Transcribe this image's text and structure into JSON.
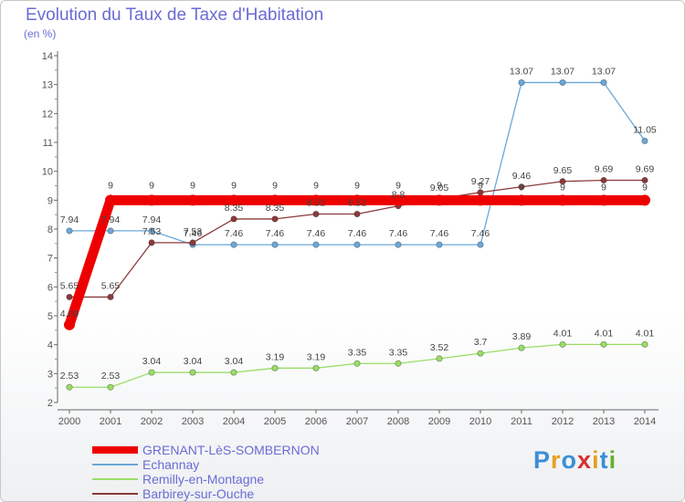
{
  "title": "Evolution du Taux de Taxe d'Habitation",
  "subtitle": "(en %)",
  "brand": {
    "text": "Proxiti",
    "colors": [
      "#3a8fd6",
      "#e8a020",
      "#3a8fd6",
      "#d63030",
      "#e8a020",
      "#3a8fd6",
      "#66b030"
    ]
  },
  "chart_data": {
    "type": "line",
    "title": "Evolution du Taux de Taxe d'Habitation",
    "subtitle": "(en %)",
    "xlabel": "",
    "ylabel": "(en %)",
    "x": [
      "2000",
      "2001",
      "2002",
      "2003",
      "2004",
      "2005",
      "2006",
      "2007",
      "2008",
      "2009",
      "2010",
      "2011",
      "2012",
      "2013",
      "2014"
    ],
    "ylim": [
      2,
      14
    ],
    "yticks": [
      "2",
      "3",
      "4",
      "5",
      "6",
      "7",
      "8",
      "9",
      "10",
      "11",
      "12",
      "13",
      "14"
    ],
    "legend_position": "bottom-left",
    "series": [
      {
        "name": "GRENANT-LèS-SOMBERNON",
        "color": "#ee0000",
        "values": [
          4.69,
          9,
          9,
          9,
          9,
          9,
          9,
          9,
          9,
          9,
          9,
          9,
          9,
          9,
          9
        ],
        "labels": [
          "4.69",
          "9",
          "9",
          "9",
          "9",
          "9",
          "9",
          "9",
          "9",
          "9",
          "9",
          "",
          "",
          "",
          ""
        ]
      },
      {
        "name": "Echannay",
        "color": "#6ba8d8",
        "values": [
          7.94,
          7.94,
          7.94,
          7.46,
          7.46,
          7.46,
          7.46,
          7.46,
          7.46,
          7.46,
          7.46,
          13.07,
          13.07,
          13.07,
          11.05
        ],
        "labels": [
          "7.94",
          "7.94",
          "7.94",
          "7.46",
          "7.46",
          "7.46",
          "7.46",
          "7.46",
          "7.46",
          "7.46",
          "7.46",
          "13.07",
          "13.07",
          "13.07",
          "11.05"
        ]
      },
      {
        "name": "Remilly-en-Montagne",
        "color": "#99dd66",
        "values": [
          2.53,
          2.53,
          3.04,
          3.04,
          3.04,
          3.19,
          3.19,
          3.35,
          3.35,
          3.52,
          3.7,
          3.89,
          4.01,
          4.01,
          4.01
        ],
        "labels": [
          "2.53",
          "2.53",
          "3.04",
          "3.04",
          "3.04",
          "3.19",
          "3.19",
          "3.35",
          "3.35",
          "3.52",
          "3.7",
          "3.89",
          "4.01",
          "4.01",
          "4.01"
        ]
      },
      {
        "name": "Barbirey-sur-Ouche",
        "color": "#8b3a3a",
        "values": [
          5.65,
          5.65,
          7.53,
          7.53,
          8.35,
          8.35,
          8.52,
          8.52,
          8.8,
          9.05,
          9.27,
          9.46,
          9.65,
          9.69,
          9.69
        ],
        "labels": [
          "5.65",
          "5.65",
          "7.53",
          "7.53",
          "8.35",
          "8.35",
          "8.52",
          "8.52",
          "8.8",
          "9.05",
          "9.27",
          "9.46",
          "9.65",
          "9.69",
          "9.69"
        ]
      }
    ],
    "extra_labels": [
      "9",
      "9",
      "9",
      "9"
    ],
    "grid": false
  }
}
